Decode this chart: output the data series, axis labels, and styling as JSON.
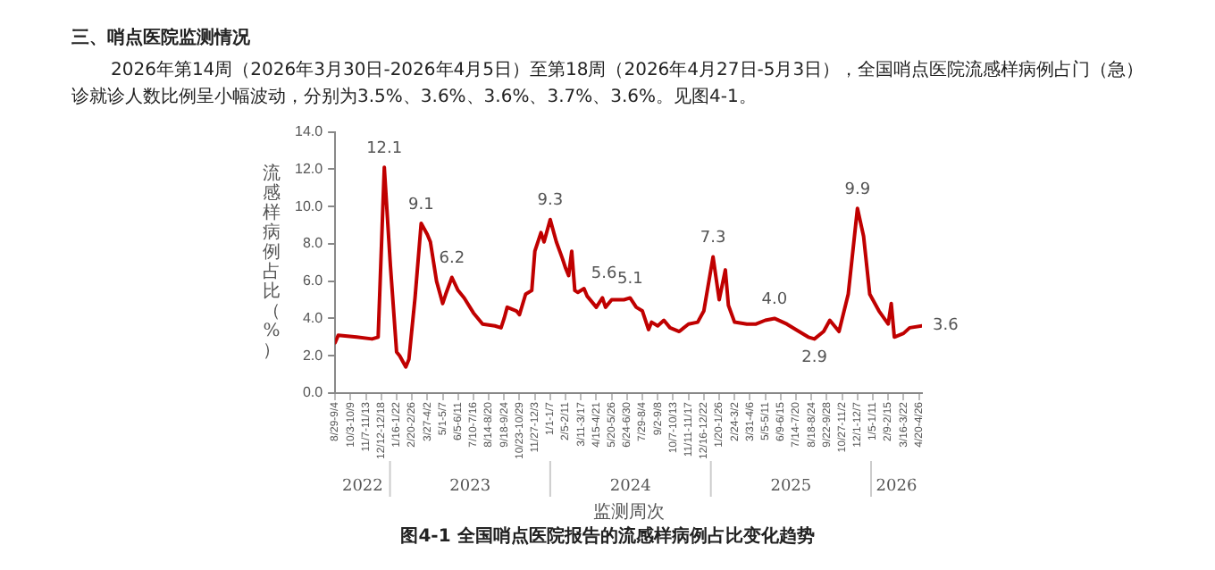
{
  "chart_data": {
    "type": "line",
    "title": "三、哨点医院监测情况",
    "subtitle": "2026年第14周（2026年3月30日-2026年4月5日）至第18周（2026年4月27日-5月3日），全国哨点医院流感样病例占门（急）诊就诊人数比例呈小幅波动，分别为3.5%、3.6%、3.6%、3.7%、3.6%。见图4-1。",
    "xlabel": "监测周次",
    "ylabel": "流感样病例占比（%）",
    "x": [
      "2022-08-29",
      "2022-09-05",
      "2022-10-17",
      "2022-11-21",
      "2022-12-05",
      "2022-12-19",
      "2023-01-02",
      "2023-01-16",
      "2023-01-23",
      "2023-02-06",
      "2023-02-13",
      "2023-02-27",
      "2023-03-13",
      "2023-03-27",
      "2023-04-03",
      "2023-04-17",
      "2023-05-01",
      "2023-05-08",
      "2023-05-22",
      "2023-06-05",
      "2023-06-19",
      "2023-07-10",
      "2023-07-31",
      "2023-08-28",
      "2023-09-11",
      "2023-09-18",
      "2023-09-25",
      "2023-10-16",
      "2023-10-23",
      "2023-11-06",
      "2023-11-20",
      "2023-11-27",
      "2023-12-11",
      "2023-12-18",
      "2024-01-01",
      "2024-01-15",
      "2024-01-29",
      "2024-02-05",
      "2024-02-12",
      "2024-02-19",
      "2024-02-26",
      "2024-03-04",
      "2024-03-18",
      "2024-03-25",
      "2024-04-15",
      "2024-04-29",
      "2024-05-06",
      "2024-05-20",
      "2024-06-17",
      "2024-07-01",
      "2024-07-15",
      "2024-07-29",
      "2024-08-12",
      "2024-08-19",
      "2024-09-02",
      "2024-09-16",
      "2024-09-30",
      "2024-10-21",
      "2024-11-11",
      "2024-12-02",
      "2024-12-16",
      "2025-01-06",
      "2025-01-20",
      "2025-02-03",
      "2025-02-10",
      "2025-02-24",
      "2025-03-24",
      "2025-04-14",
      "2025-05-05",
      "2025-05-26",
      "2025-06-23",
      "2025-07-14",
      "2025-08-11",
      "2025-08-25",
      "2025-09-15",
      "2025-09-29",
      "2025-10-20",
      "2025-11-10",
      "2025-12-01",
      "2025-12-15",
      "2025-12-29",
      "2026-01-19",
      "2026-02-09",
      "2026-02-16",
      "2026-02-23",
      "2026-03-16",
      "2026-03-30",
      "2026-04-27"
    ],
    "series": [
      {
        "color": "#c00000",
        "values": [
          2.7,
          3.1,
          3.0,
          2.9,
          3.0,
          12.1,
          6.8,
          2.2,
          2.0,
          1.4,
          1.8,
          5.1,
          9.1,
          8.5,
          8.1,
          6.0,
          4.8,
          5.3,
          6.2,
          5.5,
          5.1,
          4.3,
          3.7,
          3.6,
          3.5,
          4.0,
          4.6,
          4.4,
          4.2,
          5.3,
          5.5,
          7.6,
          8.6,
          8.1,
          9.3,
          8.1,
          7.2,
          6.7,
          6.3,
          7.6,
          5.5,
          5.4,
          5.6,
          5.2,
          4.6,
          5.1,
          4.6,
          5.0,
          5.0,
          5.1,
          4.6,
          4.4,
          3.4,
          3.8,
          3.6,
          3.9,
          3.5,
          3.3,
          3.7,
          3.8,
          4.4,
          7.3,
          5.0,
          6.6,
          4.7,
          3.8,
          3.7,
          3.7,
          3.9,
          4.0,
          3.7,
          3.4,
          3.0,
          2.9,
          3.3,
          3.9,
          3.3,
          5.3,
          9.9,
          8.4,
          5.3,
          4.4,
          3.7,
          4.8,
          3.0,
          3.2,
          3.5,
          3.6
        ]
      }
    ],
    "xlim": [
      "2022-08-29",
      "2026-04-27"
    ],
    "xticks": [
      {
        "value": "2022-08-29",
        "label": "8/29-9/4"
      },
      {
        "value": "2022-10-03",
        "label": "10/3-10/9"
      },
      {
        "value": "2022-11-07",
        "label": "11/7-11/13"
      },
      {
        "value": "2022-12-12",
        "label": "12/12-12/18"
      },
      {
        "value": "2023-01-16",
        "label": "1/16-1/22"
      },
      {
        "value": "2023-02-20",
        "label": "2/20-2/26"
      },
      {
        "value": "2023-03-27",
        "label": "3/27-4/2"
      },
      {
        "value": "2023-05-01",
        "label": "5/1-5/7"
      },
      {
        "value": "2023-06-05",
        "label": "6/5-6/11"
      },
      {
        "value": "2023-07-10",
        "label": "7/10-7/16"
      },
      {
        "value": "2023-08-14",
        "label": "8/14-8/20"
      },
      {
        "value": "2023-09-18",
        "label": "9/18-9/24"
      },
      {
        "value": "2023-10-23",
        "label": "10/23-10/29"
      },
      {
        "value": "2023-11-27",
        "label": "11/27-12/3"
      },
      {
        "value": "2024-01-01",
        "label": "1/1-1/7"
      },
      {
        "value": "2024-02-05",
        "label": "2/5-2/11"
      },
      {
        "value": "2024-03-11",
        "label": "3/11-3/17"
      },
      {
        "value": "2024-04-15",
        "label": "4/15-4/21"
      },
      {
        "value": "2024-05-20",
        "label": "5/20-5/26"
      },
      {
        "value": "2024-06-24",
        "label": "6/24-6/30"
      },
      {
        "value": "2024-07-29",
        "label": "7/29-8/4"
      },
      {
        "value": "2024-09-02",
        "label": "9/2-9/8"
      },
      {
        "value": "2024-10-07",
        "label": "10/7-10/13"
      },
      {
        "value": "2024-11-11",
        "label": "11/11-11/17"
      },
      {
        "value": "2024-12-16",
        "label": "12/16-12/22"
      },
      {
        "value": "2025-01-20",
        "label": "1/20-1/26"
      },
      {
        "value": "2025-02-24",
        "label": "2/24-3/2"
      },
      {
        "value": "2025-03-31",
        "label": "3/31-4/6"
      },
      {
        "value": "2025-05-05",
        "label": "5/5-5/11"
      },
      {
        "value": "2025-06-09",
        "label": "6/9-6/15"
      },
      {
        "value": "2025-07-14",
        "label": "7/14-7/20"
      },
      {
        "value": "2025-08-18",
        "label": "8/18-8/24"
      },
      {
        "value": "2025-09-22",
        "label": "9/22-9/28"
      },
      {
        "value": "2025-10-27",
        "label": "10/27-11/2"
      },
      {
        "value": "2025-12-01",
        "label": "12/1-12/7"
      },
      {
        "value": "2026-01-05",
        "label": "1/5-1/11"
      },
      {
        "value": "2026-02-09",
        "label": "2/9-2/15"
      },
      {
        "value": "2026-03-16",
        "label": "3/16-3/22"
      },
      {
        "value": "2026-04-20",
        "label": "4/20-4/26"
      }
    ],
    "ylim": [
      0,
      14
    ],
    "yticks": [
      {
        "value": 0,
        "label": "0.0"
      },
      {
        "value": 2,
        "label": "2.0"
      },
      {
        "value": 4,
        "label": "4.0"
      },
      {
        "value": 6,
        "label": "6.0"
      },
      {
        "value": 8,
        "label": "8.0"
      },
      {
        "value": 10,
        "label": "10.0"
      },
      {
        "value": 12,
        "label": "12.0"
      },
      {
        "value": 14,
        "label": "14.0"
      }
    ],
    "grid": false,
    "marker": "none",
    "line_style": "solid",
    "annotations": [
      {
        "text": "12.1",
        "x": "2022-12-19",
        "y": 12.1
      },
      {
        "text": "9.1",
        "x": "2023-03-13",
        "y": 9.1
      },
      {
        "text": "6.2",
        "x": "2023-05-22",
        "y": 6.2
      },
      {
        "text": "9.3",
        "x": "2024-01-01",
        "y": 9.3
      },
      {
        "text": "5.6",
        "x": "2024-03-18",
        "y": 5.6
      },
      {
        "text": "5.1",
        "x": "2024-07-01",
        "y": 5.1
      },
      {
        "text": "7.3",
        "x": "2025-01-06",
        "y": 7.3
      },
      {
        "text": "4.0",
        "x": "2025-05-26",
        "y": 4.0
      },
      {
        "text": "2.9",
        "x": "2025-08-25",
        "y": 2.9
      },
      {
        "text": "9.9",
        "x": "2025-12-01",
        "y": 9.9
      },
      {
        "text": "3.6",
        "x": "2026-04-27",
        "y": 3.6
      },
      "2022",
      "2023",
      "2024",
      "2025",
      "2026",
      "图4-1 全国哨点医院报告的流感样病例占比变化趋势"
    ]
  }
}
